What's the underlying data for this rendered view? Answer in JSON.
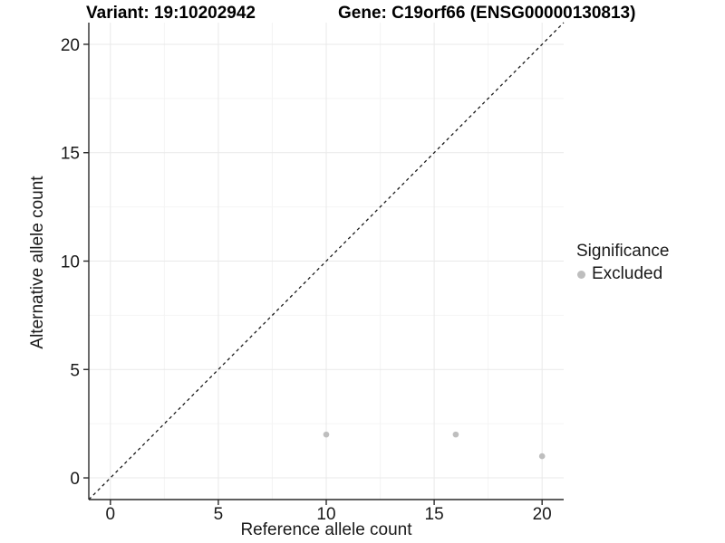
{
  "chart_data": {
    "type": "scatter",
    "title_left": "Variant: 19:10202942",
    "title_right": "Gene: C19orf66 (ENSG00000130813)",
    "xlabel": "Reference allele count",
    "ylabel": "Alternative allele count",
    "xlim": [
      -1,
      21
    ],
    "ylim": [
      -1,
      21
    ],
    "x_ticks": [
      0,
      5,
      10,
      15,
      20
    ],
    "y_ticks": [
      0,
      5,
      10,
      15,
      20
    ],
    "x_minor_ticks": [
      2.5,
      7.5,
      12.5,
      17.5
    ],
    "y_minor_ticks": [
      2.5,
      7.5,
      12.5,
      17.5
    ],
    "grid": true,
    "series": [
      {
        "name": "Excluded",
        "color": "#bebebe",
        "points": [
          {
            "x": 10,
            "y": 2
          },
          {
            "x": 16,
            "y": 2
          },
          {
            "x": 20,
            "y": 1
          }
        ]
      }
    ],
    "abline": {
      "slope": 1,
      "intercept": 0,
      "style": "dashed",
      "color": "#1a1a1a"
    },
    "legend": {
      "title": "Significance",
      "position": "right",
      "items": [
        {
          "label": "Excluded",
          "color": "#bebebe",
          "marker": "dot"
        }
      ]
    },
    "colors": {
      "background": "#ffffff",
      "grid_major": "#e9e9e9",
      "grid_minor": "#f4f4f4",
      "axis_line": "#2a2a2a",
      "tick_text": "#1a1a1a",
      "point": "#bebebe"
    }
  }
}
